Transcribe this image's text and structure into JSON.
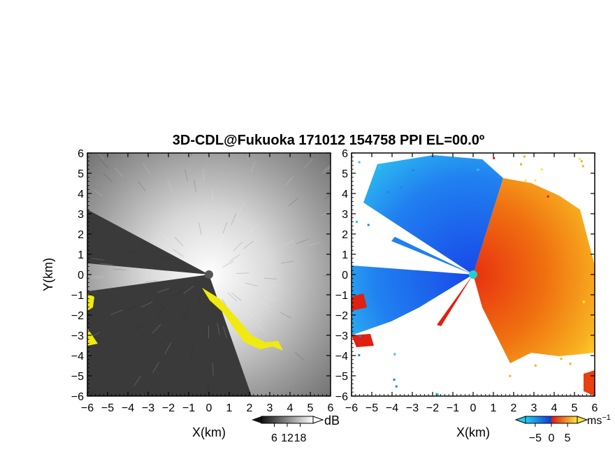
{
  "chart_data": {
    "title": "3D-CDL@Fukuoka 171012 154758 PPI EL=00.0º",
    "panels": [
      {
        "type": "heatmap",
        "quantity": "SNR",
        "xlabel": "X(km)",
        "ylabel": "Y(km)",
        "xlim": [
          -6,
          6
        ],
        "ylim": [
          -6,
          6
        ],
        "xticks": [
          "−6",
          "−5",
          "−4",
          "−3",
          "−2",
          "−1",
          "0",
          "1",
          "2",
          "3",
          "4",
          "5",
          "6"
        ],
        "yticks": [
          "6",
          "5",
          "4",
          "3",
          "2",
          "1",
          "0",
          "−1",
          "−2",
          "−3",
          "−4",
          "−5",
          "−6"
        ],
        "colorbar": {
          "unit": "dB",
          "ticks": [
            "6",
            "12",
            "18"
          ],
          "tick_values": [
            6,
            12,
            18
          ],
          "range": [
            0,
            24
          ],
          "colormap": "grayscale"
        }
      },
      {
        "type": "heatmap",
        "quantity": "Doppler velocity",
        "xlabel": "X(km)",
        "ylabel": "",
        "xlim": [
          -6,
          6
        ],
        "ylim": [
          -6,
          6
        ],
        "xticks": [
          "−6",
          "−5",
          "−4",
          "−3",
          "−2",
          "−1",
          "0",
          "1",
          "2",
          "3",
          "4",
          "5",
          "6"
        ],
        "yticks": [
          "6",
          "5",
          "4",
          "3",
          "2",
          "1",
          "0",
          "−1",
          "−2",
          "−3",
          "−4",
          "−5",
          "−6"
        ],
        "colorbar": {
          "unit": "ms",
          "unit_exponent": "−1",
          "ticks": [
            "−5",
            "0",
            "5"
          ],
          "tick_values": [
            -5,
            0,
            5
          ],
          "range": [
            -8,
            8
          ],
          "colormap": "blue-cyan / red-yellow diverging"
        }
      }
    ]
  },
  "colors": {
    "snr_max": "#ffffff",
    "snr_min": "#111111",
    "low_snr_flag": "#f0ea10",
    "vel_neg_far": "#1040e0",
    "vel_neg_near": "#20d0f0",
    "vel_pos_near": "#e02010",
    "vel_pos_far": "#ffe640"
  }
}
